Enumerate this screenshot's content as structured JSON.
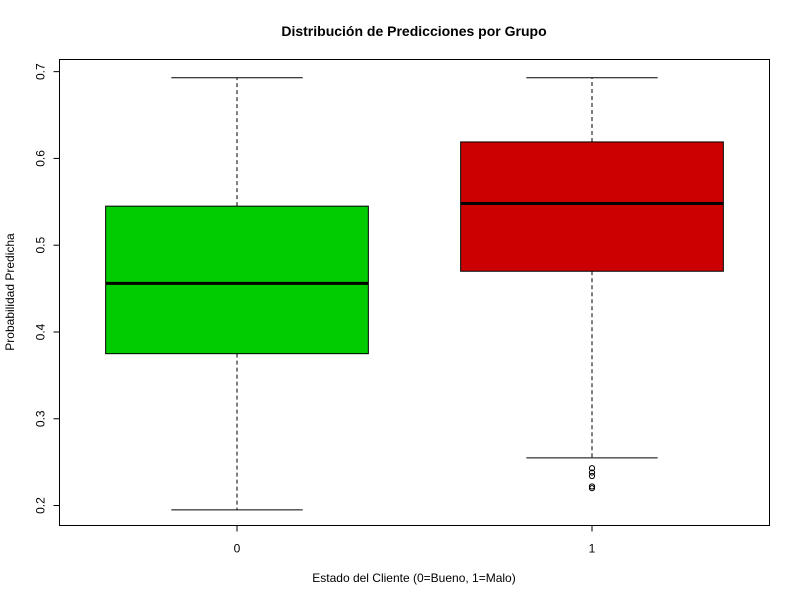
{
  "chart_data": {
    "type": "boxplot",
    "title": "Distribución de Predicciones por Grupo",
    "xlabel": "Estado del Cliente (0=Bueno, 1=Malo)",
    "ylabel": "Probabilidad Predicha",
    "categories": [
      "0",
      "1"
    ],
    "yticks": [
      0.2,
      0.3,
      0.4,
      0.5,
      0.6,
      0.7
    ],
    "ylim": [
      0.177,
      0.714
    ],
    "grid": false,
    "boxes": [
      {
        "category": "0",
        "color": "#00cc00",
        "whisker_low": 0.195,
        "q1": 0.375,
        "median": 0.456,
        "q3": 0.545,
        "whisker_high": 0.693,
        "outliers": []
      },
      {
        "category": "1",
        "color": "#cc0000",
        "whisker_low": 0.255,
        "q1": 0.47,
        "median": 0.548,
        "q3": 0.619,
        "whisker_high": 0.693,
        "outliers": [
          0.243,
          0.238,
          0.234,
          0.222,
          0.22
        ]
      }
    ]
  }
}
